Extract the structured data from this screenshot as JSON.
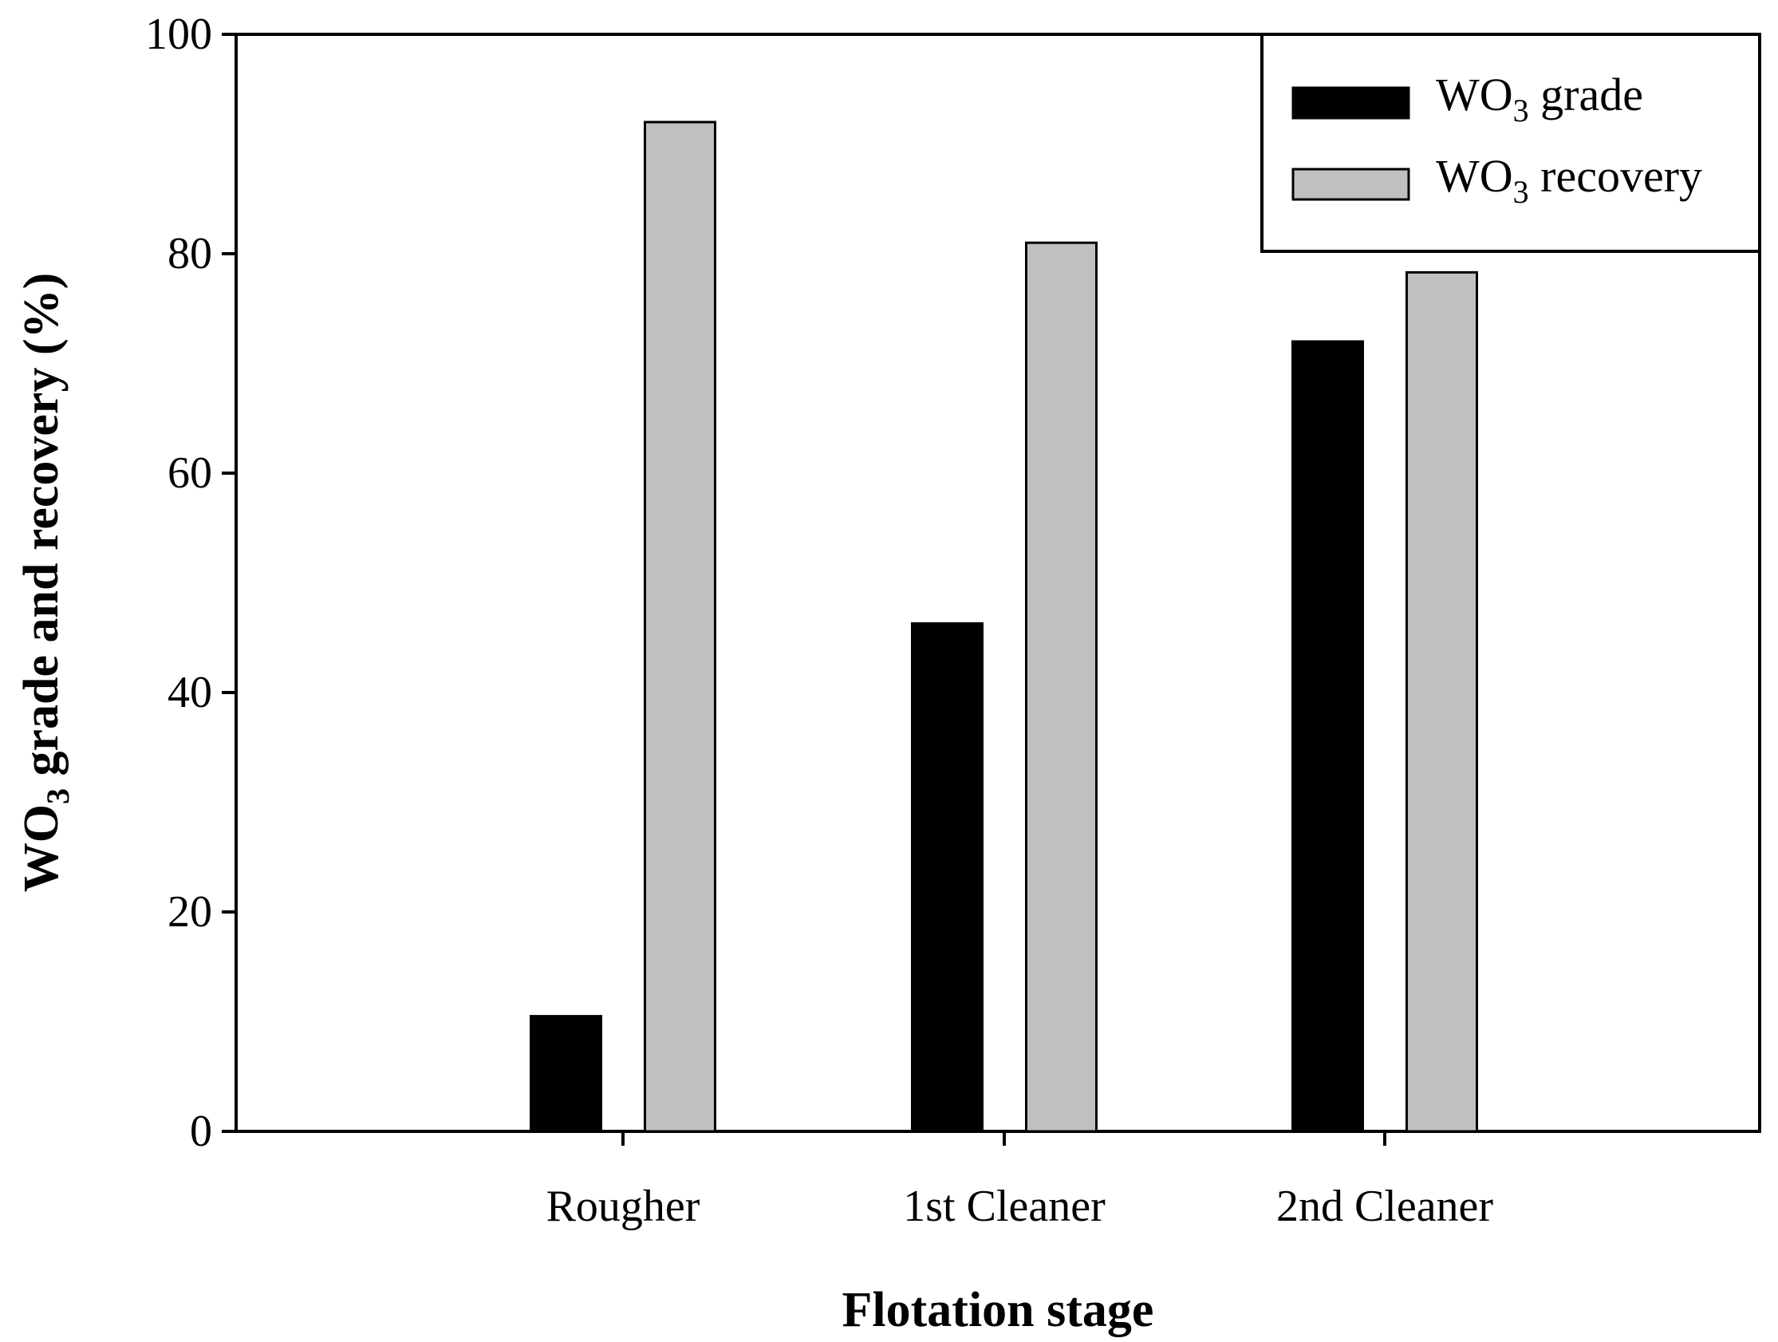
{
  "chart_data": {
    "type": "bar",
    "categories": [
      "Rougher",
      "1st Cleaner",
      "2nd Cleaner"
    ],
    "series": [
      {
        "name_main": "WO",
        "name_sub": "3",
        "name_rest": " grade",
        "color": "#000000",
        "values": [
          10.5,
          46.3,
          72.0
        ]
      },
      {
        "name_main": "WO",
        "name_sub": "3",
        "name_rest": " recovery",
        "color": "#c0c0c0",
        "values": [
          92.0,
          81.0,
          78.3
        ]
      }
    ],
    "xlabel": "Flotation stage",
    "ylabel": {
      "main": "WO",
      "sub": "3",
      "rest": " grade and recovery (%)"
    },
    "ylim": [
      0,
      100
    ],
    "yticks": [
      0,
      20,
      40,
      60,
      80,
      100
    ],
    "legend_position": "top-right",
    "grid": false
  }
}
